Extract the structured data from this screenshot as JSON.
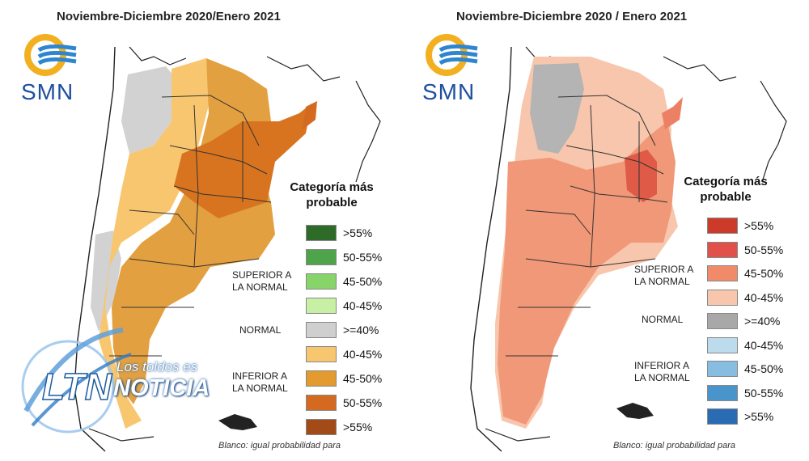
{
  "left_panel": {
    "title": "Noviembre-Diciembre 2020/Enero 2021",
    "logo_text": "SMN",
    "legend": {
      "title_line1": "Categoría más",
      "title_line2": "probable",
      "items": [
        {
          "label": ">55%",
          "color": "#2e6b28"
        },
        {
          "label": "50-55%",
          "color": "#4ea44a"
        },
        {
          "label": "45-50%",
          "color": "#86d46a"
        },
        {
          "label": "40-45%",
          "color": "#c8f0a4"
        },
        {
          "label": ">=40%",
          "color": "#cfcfcf"
        },
        {
          "label": "40-45%",
          "color": "#f8c66e"
        },
        {
          "label": "45-50%",
          "color": "#e39a2e"
        },
        {
          "label": "50-55%",
          "color": "#d46a20"
        },
        {
          "label": ">55%",
          "color": "#a24a18"
        }
      ],
      "group_superior_line1": "SUPERIOR A",
      "group_superior_line2": "LA NORMAL",
      "group_normal": "NORMAL",
      "group_inferior_line1": "INFERIOR A",
      "group_inferior_line2": "LA NORMAL"
    },
    "footnote": "Blanco: igual probabilidad para"
  },
  "right_panel": {
    "title": "Noviembre-Diciembre 2020 / Enero 2021",
    "logo_text": "SMN",
    "legend": {
      "title_line1": "Categoría más",
      "title_line2": "probable",
      "items": [
        {
          "label": ">55%",
          "color": "#cc3a2a"
        },
        {
          "label": "50-55%",
          "color": "#e2504a"
        },
        {
          "label": "45-50%",
          "color": "#f08a68"
        },
        {
          "label": "40-45%",
          "color": "#f7c6ad"
        },
        {
          "label": ">=40%",
          "color": "#a8a8a8"
        },
        {
          "label": "40-45%",
          "color": "#bcdcee"
        },
        {
          "label": "45-50%",
          "color": "#86bde0"
        },
        {
          "label": "50-55%",
          "color": "#4a94cc"
        },
        {
          "label": ">55%",
          "color": "#2a6cb4"
        }
      ],
      "group_superior_line1": "SUPERIOR A",
      "group_superior_line2": "LA NORMAL",
      "group_normal": "NORMAL",
      "group_inferior_line1": "INFERIOR A",
      "group_inferior_line2": "LA NORMAL"
    },
    "footnote": "Blanco: igual probabilidad para"
  },
  "watermark": {
    "logo_text": "LTN",
    "subtitle": "Los toldos es",
    "title": "NOTICIA"
  }
}
